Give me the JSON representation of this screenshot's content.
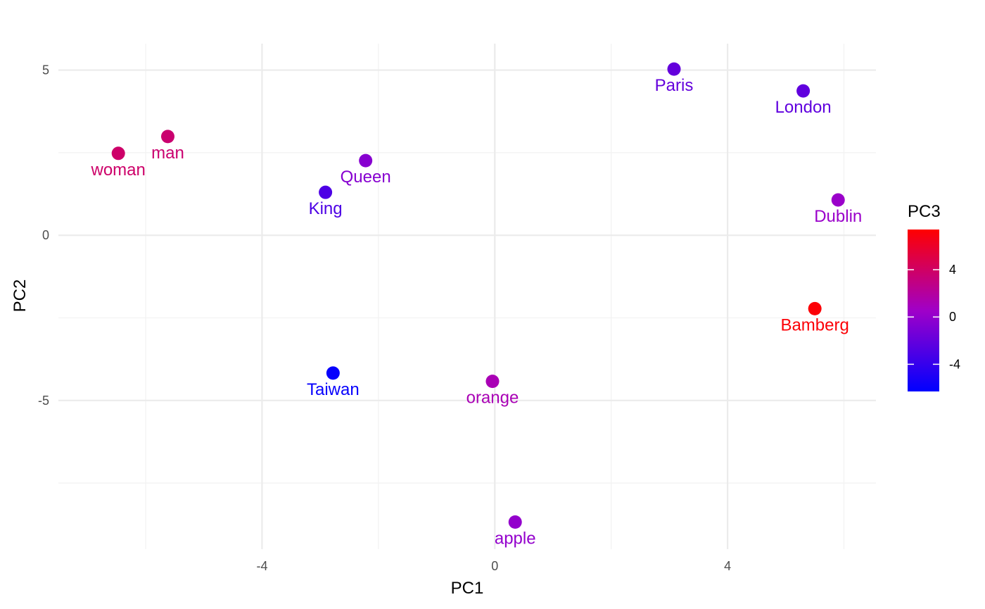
{
  "chart_data": {
    "type": "scatter",
    "title": "",
    "xlabel": "PC1",
    "ylabel": "PC2",
    "xlim": [
      -7.5,
      6.55
    ],
    "ylim": [
      -9.5,
      5.8
    ],
    "x_ticks": [
      -4,
      0,
      4
    ],
    "x_tick_labels": [
      "-4",
      "0",
      "4"
    ],
    "y_ticks": [
      5,
      0,
      -5
    ],
    "y_tick_labels": [
      "5",
      "0",
      "-5"
    ],
    "grid": true,
    "color_by": "PC3",
    "legend": {
      "title": "PC3",
      "placement": "right",
      "type": "colorbar",
      "range": [
        -6.3,
        7.4
      ],
      "ticks": [
        4,
        0,
        -4
      ],
      "tick_labels": [
        "4",
        "0",
        "-4"
      ],
      "low_color": "#0000FF",
      "mid_color": "#A000C8",
      "high_color": "#FF0000"
    },
    "points": [
      {
        "label": "Paris",
        "x": 3.08,
        "y": 5.03,
        "pc3": -2.0
      },
      {
        "label": "London",
        "x": 5.3,
        "y": 4.37,
        "pc3": -2.2
      },
      {
        "label": "woman",
        "x": -6.47,
        "y": 2.48,
        "pc3": 3.8
      },
      {
        "label": "man",
        "x": -5.62,
        "y": 2.99,
        "pc3": 3.6
      },
      {
        "label": "Queen",
        "x": -2.22,
        "y": 2.26,
        "pc3": -0.5
      },
      {
        "label": "King",
        "x": -2.91,
        "y": 1.3,
        "pc3": -3.0
      },
      {
        "label": "Dublin",
        "x": 5.9,
        "y": 1.07,
        "pc3": 0.3
      },
      {
        "label": "Bamberg",
        "x": 5.5,
        "y": -2.22,
        "pc3": 7.2
      },
      {
        "label": "Taiwan",
        "x": -2.78,
        "y": -4.17,
        "pc3": -6.0
      },
      {
        "label": "orange",
        "x": -0.04,
        "y": -4.42,
        "pc3": 1.2
      },
      {
        "label": "apple",
        "x": 0.35,
        "y": -8.68,
        "pc3": 0.0
      }
    ]
  }
}
